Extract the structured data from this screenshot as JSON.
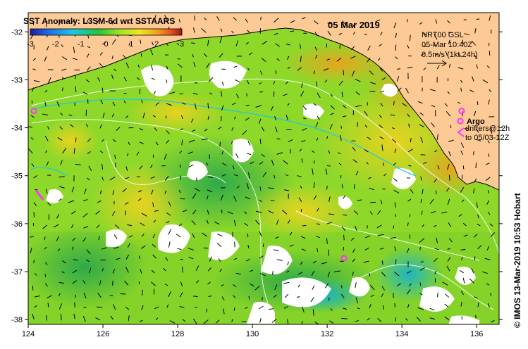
{
  "map": {
    "title": "SST Anomaly: L3SM-6d wrt SSTAARS",
    "date": "05 Mar 2019",
    "colorbar": {
      "ticks": [
        "-3",
        "-2",
        "-1",
        "0",
        "1",
        "2",
        "3"
      ],
      "range": [
        -3,
        3
      ],
      "colors": [
        "#1a1aa0",
        "#1f6ee6",
        "#19c8e6",
        "#1ec83c",
        "#a6e61e",
        "#f0e61e",
        "#f0a01e",
        "#e6501e",
        "#a01414"
      ]
    },
    "current_info": {
      "line1": "NRT00 GSL",
      "line2": "05-Mar 10:40Z",
      "line3": "0.5m/s (1kt 24h)"
    },
    "argo": {
      "label": "Argo",
      "drifters_line1": "drifters@12h",
      "drifters_line2": "to 05/03-12Z",
      "color": "#ff33ff"
    },
    "credit": "© IMOS 13-Mar-2019 10:53 Hobart",
    "x_axis": {
      "ticks": [
        "124",
        "126",
        "128",
        "130",
        "132",
        "134",
        "136"
      ],
      "range": [
        124,
        136.6
      ]
    },
    "y_axis": {
      "ticks": [
        "-32",
        "-33",
        "-34",
        "-35",
        "-36",
        "-37",
        "-38"
      ],
      "range": [
        -38.1,
        -31.6
      ]
    },
    "land_color": "#fdca96",
    "argo_positions": [
      {
        "lon": 124.15,
        "lat": -33.65
      },
      {
        "lon": 132.45,
        "lat": -36.72
      },
      {
        "lon": 135.6,
        "lat": -33.65
      }
    ],
    "drifter_tracks": [
      {
        "points": [
          [
            124.2,
            -35.3
          ],
          [
            124.3,
            -35.4
          ],
          [
            124.4,
            -35.5
          ]
        ]
      }
    ]
  }
}
